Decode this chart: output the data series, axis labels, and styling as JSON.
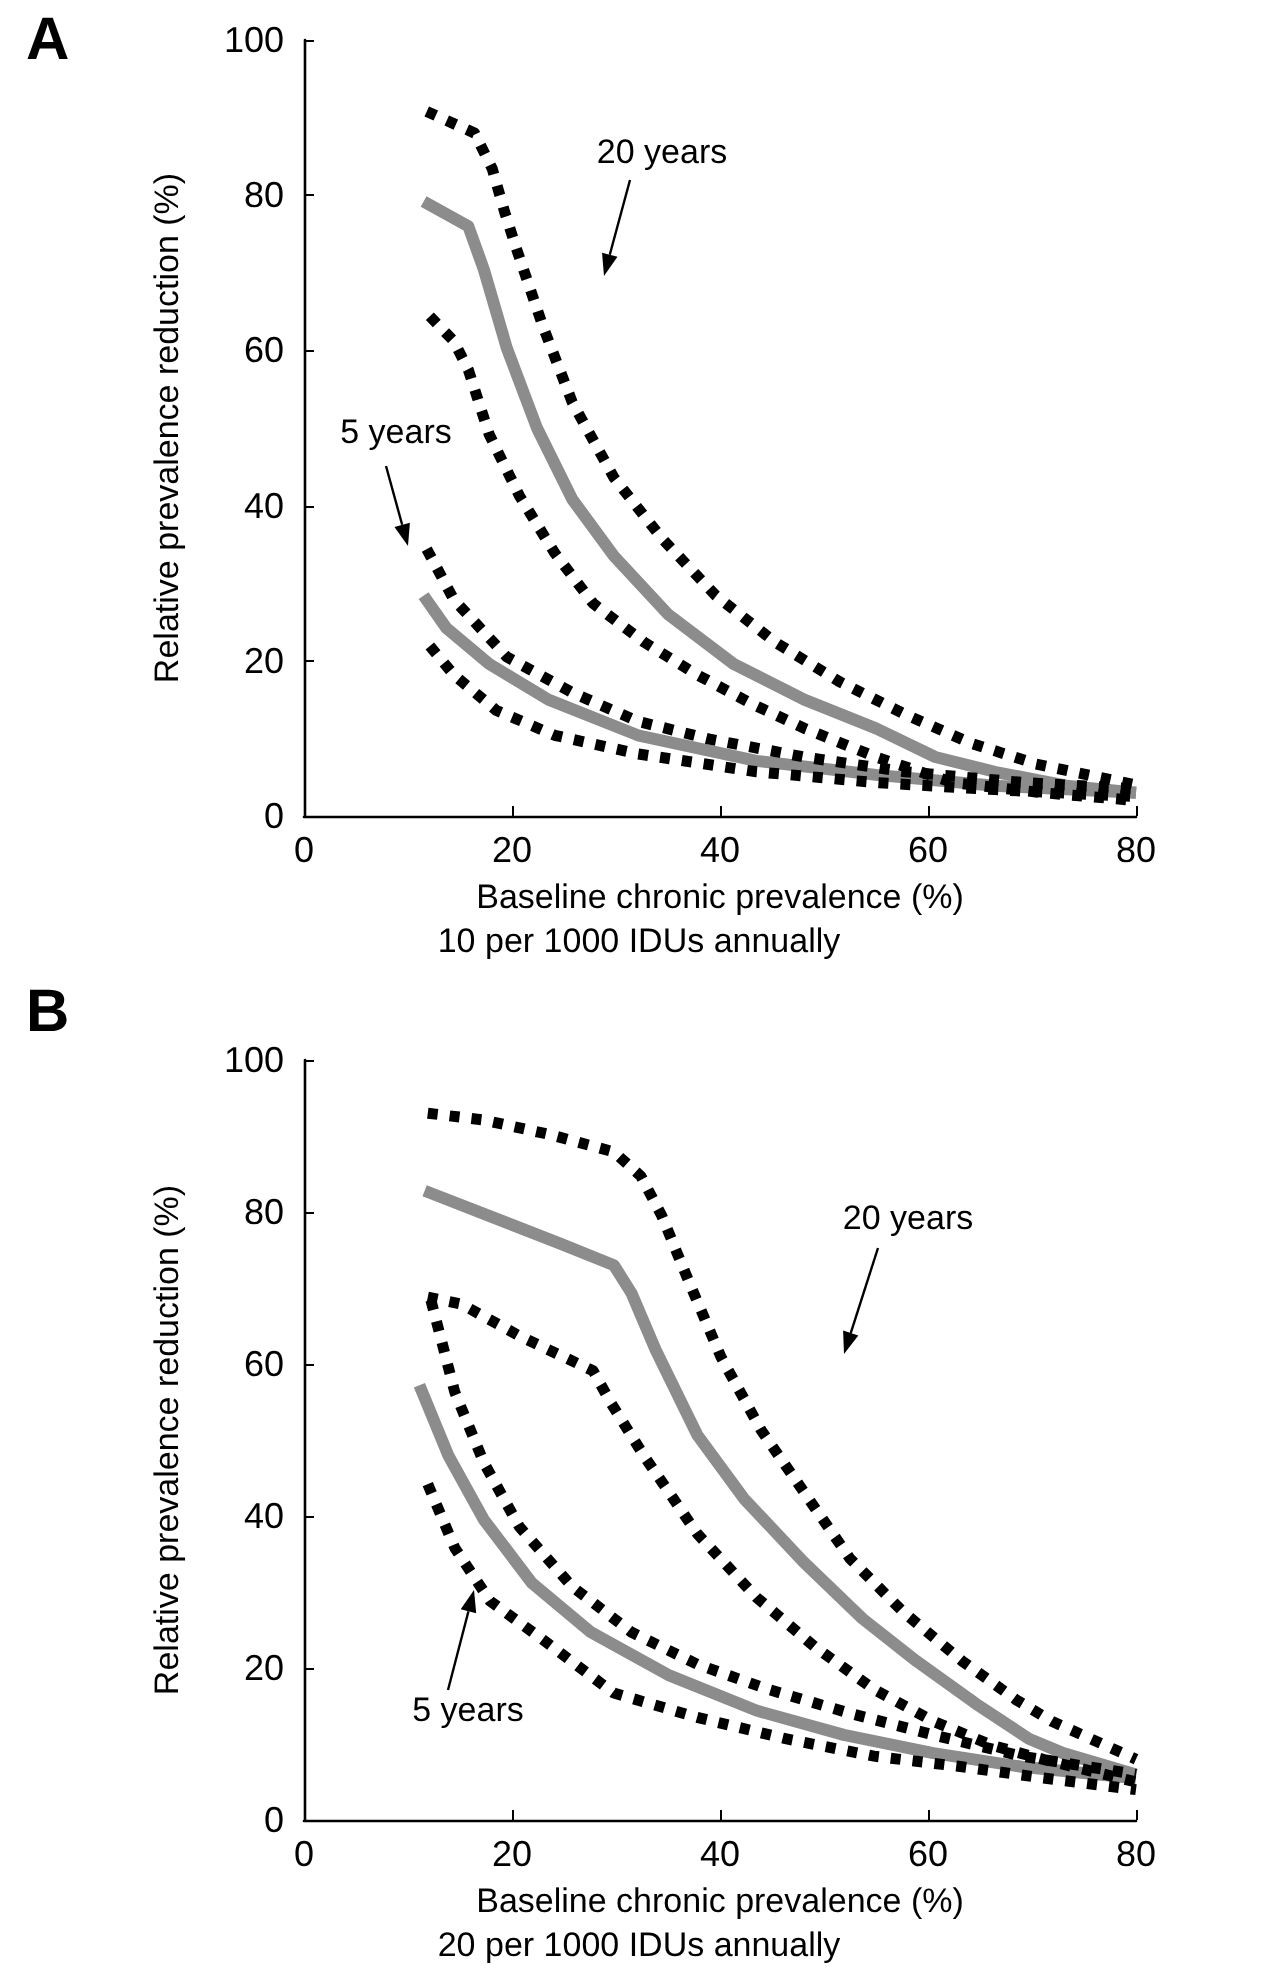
{
  "chart_data": [
    {
      "type": "line",
      "title": "A",
      "xlabel": "Baseline chronic prevalence (%)",
      "ylabel": "Relative prevalence reduction (%)",
      "xlim": [
        0,
        80
      ],
      "ylim": [
        0,
        100
      ],
      "xticks": [
        0,
        20,
        40,
        60,
        80
      ],
      "yticks": [
        0,
        20,
        40,
        60,
        80,
        100
      ],
      "marker": "none",
      "annotations": [
        "20 years",
        "5 years",
        "10 per 1000 IDUs annually"
      ],
      "series": [
        {
          "color": "#000000",
          "line_style": "dotted",
          "x": [
            11.8,
            16.4,
            18.1,
            19.3,
            20.4,
            23,
            25.8,
            29.8,
            34.4,
            39.6,
            45.3,
            51.5,
            57.8,
            64.1,
            70.4,
            80
          ],
          "values": [
            90.8,
            88,
            83.4,
            77.8,
            73.2,
            63,
            53.3,
            43.6,
            35.8,
            28.4,
            22.4,
            17.3,
            13.1,
            9.4,
            6.7,
            4
          ]
        },
        {
          "color": "#8c8c8c",
          "line_style": "solid",
          "x": [
            11.5,
            15.8,
            17.3,
            19.5,
            22.4,
            25.8,
            29.8,
            35,
            41.3,
            48.1,
            55,
            60.7,
            66.4,
            73.3,
            80
          ],
          "values": [
            79.2,
            76,
            70.4,
            60.3,
            50,
            40.8,
            33.5,
            26,
            19.6,
            15,
            11.3,
            7.6,
            5.7,
            3.9,
            3
          ]
        },
        {
          "color": "#000000",
          "line_style": "dotted",
          "x": [
            12.1,
            14.4,
            15.8,
            17.8,
            20.7,
            24.1,
            27.8,
            32.7,
            37.8,
            43,
            48.1,
            55,
            62.4,
            71,
            80
          ],
          "values": [
            64.4,
            61.2,
            57.5,
            49.2,
            41.3,
            33.9,
            27.4,
            22.4,
            18.2,
            14.5,
            11.3,
            7.6,
            4.3,
            3,
            2
          ]
        },
        {
          "color": "#000000",
          "line_style": "dotted",
          "x": [
            11.8,
            14.4,
            19.5,
            25.8,
            32.1,
            39,
            48.1,
            57.8,
            69.3,
            80
          ],
          "values": [
            34.4,
            27.9,
            20.5,
            15.9,
            12.2,
            9.9,
            7.6,
            5.7,
            4.3,
            3.5
          ]
        },
        {
          "color": "#8c8c8c",
          "line_style": "solid",
          "x": [
            11.5,
            13.7,
            17.8,
            23.5,
            32.1,
            43.5,
            55,
            66.4,
            80
          ],
          "values": [
            28.4,
            24.2,
            19.6,
            15,
            10.4,
            7.1,
            5.3,
            3.9,
            3
          ]
        },
        {
          "color": "#000000",
          "line_style": "dotted",
          "x": [
            12.1,
            14.4,
            18.5,
            24.1,
            32.1,
            43.5,
            55,
            66.4,
            80
          ],
          "values": [
            21.9,
            18.2,
            13.6,
            10.4,
            8,
            5.7,
            4.3,
            3.4,
            2.5
          ]
        }
      ]
    },
    {
      "type": "line",
      "title": "B",
      "xlabel": "Baseline chronic prevalence (%)",
      "ylabel": "Relative prevalence reduction (%)",
      "xlim": [
        0,
        80
      ],
      "ylim": [
        0,
        100
      ],
      "xticks": [
        0,
        20,
        40,
        60,
        80
      ],
      "yticks": [
        0,
        20,
        40,
        60,
        80,
        100
      ],
      "marker": "none",
      "annotations": [
        "20 years",
        "5 years",
        "20 per 1000 IDUs annually"
      ],
      "series": [
        {
          "color": "#000000",
          "line_style": "dotted",
          "x": [
            11.9,
            17.3,
            23.6,
            29.8,
            32.4,
            34.4,
            37.2,
            40.1,
            44,
            48.5,
            52.5,
            57.6,
            63.3,
            68.5,
            71.9,
            80
          ],
          "values": [
            93,
            92.1,
            90.2,
            87.9,
            84.7,
            79.5,
            70.2,
            60.9,
            51.2,
            42.3,
            34.4,
            27.4,
            20.9,
            15.8,
            13,
            8
          ]
        },
        {
          "color": "#8c8c8c",
          "line_style": "solid",
          "x": [
            11.6,
            17.8,
            24.7,
            29.8,
            31.5,
            33.8,
            37.8,
            42.3,
            48,
            53.7,
            58.9,
            64.6,
            69.7,
            73,
            80
          ],
          "values": [
            82.8,
            79.5,
            75.8,
            73,
            69.3,
            61.9,
            50.7,
            42.3,
            34,
            26.5,
            20.9,
            15.3,
            10.7,
            8.8,
            6
          ]
        },
        {
          "color": "#000000",
          "line_style": "dotted",
          "x": [
            11.9,
            15.1,
            20.7,
            27.8,
            29.5,
            32.7,
            37.8,
            43.5,
            49.1,
            54.8,
            60.5,
            66.2,
            71.3,
            80
          ],
          "values": [
            68.8,
            67.9,
            63.7,
            59.1,
            54.9,
            47.9,
            37.7,
            29.3,
            22.8,
            17.2,
            13,
            9.8,
            7.9,
            5
          ]
        },
        {
          "color": "#000000",
          "line_style": "dotted",
          "x": [
            12.2,
            13.1,
            14.5,
            17.3,
            20.7,
            25.8,
            31.5,
            37.8,
            44.6,
            52.6,
            60.5,
            69,
            80
          ],
          "values": [
            68.4,
            63.7,
            56.3,
            47,
            38.6,
            30.7,
            24.7,
            20.5,
            17.2,
            14,
            11.2,
            8.4,
            6
          ]
        },
        {
          "color": "#8c8c8c",
          "line_style": "solid",
          "x": [
            11.1,
            13.9,
            17.3,
            21.9,
            27.6,
            35,
            43.5,
            51.9,
            60.5,
            69,
            80
          ],
          "values": [
            57.2,
            47.9,
            39.5,
            31.2,
            24.7,
            19.1,
            14.4,
            11.2,
            8.8,
            7,
            5.5
          ]
        },
        {
          "color": "#000000",
          "line_style": "dotted",
          "x": [
            11.9,
            14.5,
            17.9,
            23,
            29.8,
            37.8,
            46.3,
            54.8,
            63.3,
            70.7,
            80
          ],
          "values": [
            44.2,
            35.8,
            28.8,
            23.7,
            16.7,
            13.5,
            10.7,
            8.4,
            7,
            5.6,
            4
          ]
        }
      ]
    }
  ]
}
